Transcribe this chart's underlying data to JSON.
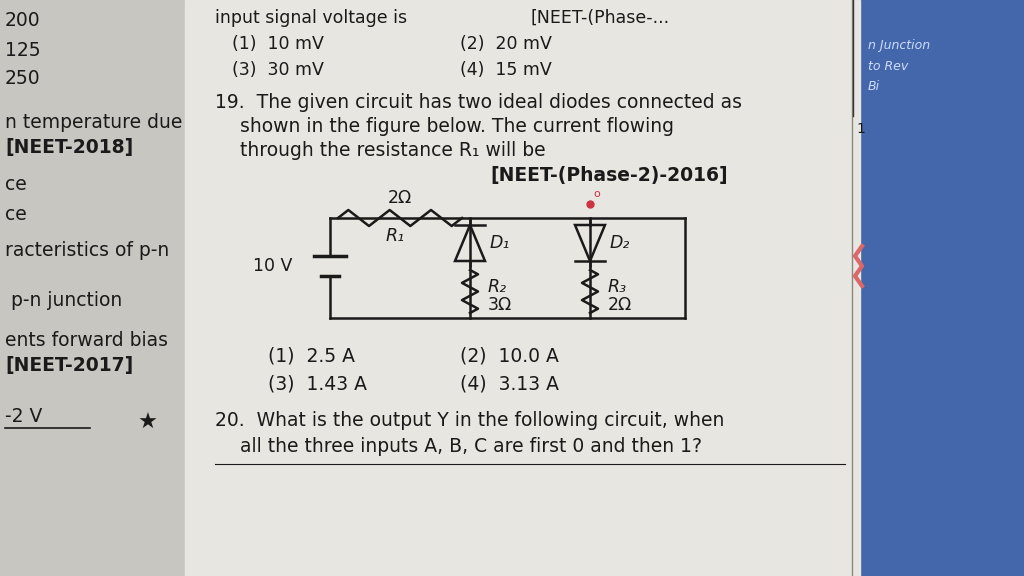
{
  "bg_color": "#d0cec8",
  "paper_color": "#e8e6e0",
  "text_color": "#1a1a1a",
  "circuit": {
    "battery_voltage": "10 V",
    "R1_label": "2Ω",
    "R1_name": "R₁",
    "R2_label": "3Ω",
    "R2_name": "R₂",
    "R3_label": "2Ω",
    "R3_name": "R₃",
    "D1_name": "D₁",
    "D2_name": "D₂",
    "dot_color": "#cc3344"
  }
}
